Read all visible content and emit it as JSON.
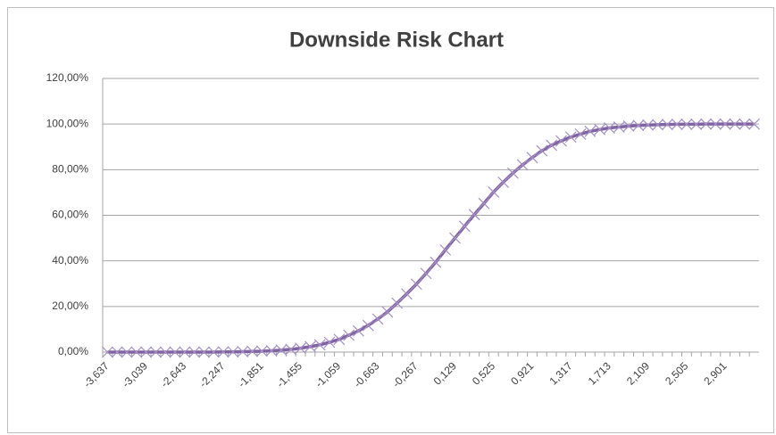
{
  "chart_data": {
    "type": "line",
    "title": "Downside Risk Chart",
    "categories": [
      "-3,637",
      null,
      null,
      null,
      "-3,039",
      null,
      null,
      null,
      "-2,643",
      null,
      null,
      null,
      "-2,247",
      null,
      null,
      null,
      "-1,851",
      null,
      null,
      null,
      "-1,455",
      null,
      null,
      null,
      "-1,059",
      null,
      null,
      null,
      "-0,663",
      null,
      null,
      null,
      "-0,267",
      null,
      null,
      null,
      "0,129",
      null,
      null,
      null,
      "0,525",
      null,
      null,
      null,
      "0,921",
      null,
      null,
      null,
      "1,317",
      null,
      null,
      null,
      "1,713",
      null,
      null,
      null,
      "2,109",
      null,
      null,
      null,
      "2,505",
      null,
      null,
      null,
      "2,901",
      null,
      null,
      null
    ],
    "series": [
      {
        "name": "Downside Risk",
        "color": "#8064a2",
        "values": [
          0,
          0,
          0,
          0,
          0,
          0,
          0,
          0,
          0,
          0,
          0,
          0,
          0.1,
          0.1,
          0.2,
          0.3,
          0.4,
          0.6,
          0.9,
          1.2,
          1.7,
          2.4,
          3.2,
          4.3,
          5.6,
          7.4,
          9.3,
          11.7,
          14.5,
          17.6,
          21.5,
          25.5,
          29.8,
          34.5,
          39.4,
          44.8,
          50.0,
          55.2,
          60.3,
          65.2,
          70.2,
          74.5,
          78.5,
          82.1,
          85.3,
          88.3,
          90.7,
          92.6,
          94.3,
          95.6,
          96.8,
          97.6,
          98.3,
          98.7,
          99.1,
          99.4,
          99.6,
          99.7,
          99.8,
          99.9,
          99.9,
          99.9,
          100,
          100,
          100,
          100,
          100,
          100
        ]
      }
    ],
    "ylim": [
      0,
      120
    ],
    "yticks": [
      {
        "value": 0,
        "label": "0,00%"
      },
      {
        "value": 20,
        "label": "20,00%"
      },
      {
        "value": 40,
        "label": "40,00%"
      },
      {
        "value": 60,
        "label": "60,00%"
      },
      {
        "value": 80,
        "label": "80,00%"
      },
      {
        "value": 100,
        "label": "100,00%"
      },
      {
        "value": 120,
        "label": "120,00%"
      }
    ],
    "grid": true
  }
}
